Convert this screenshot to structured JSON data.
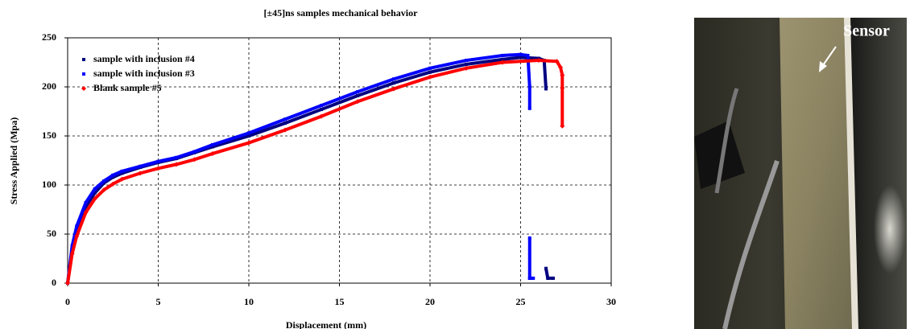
{
  "chart_data": {
    "type": "line",
    "title": "[±45]ns samples mechanical behavior",
    "x_label": "Displacement (mm)",
    "y_label": "Stress Applied (Mpa)",
    "xlim": [
      0,
      30
    ],
    "xticks": [
      0,
      5,
      10,
      15,
      20,
      25,
      30
    ],
    "ylim": [
      0,
      250
    ],
    "yticks": [
      0,
      50,
      100,
      150,
      200,
      250
    ],
    "grid": true,
    "legend": "upper left",
    "series": [
      {
        "name": "sample with inclusion #4",
        "color": "#000080",
        "marker": "square",
        "x": [
          0,
          0.25,
          0.5,
          1,
          1.5,
          2,
          2.5,
          3,
          4,
          5,
          6,
          7,
          8,
          10,
          12,
          14,
          16,
          18,
          20,
          22,
          24,
          25,
          26,
          26.3,
          26.4,
          26.4,
          26.4,
          26.5,
          26.8
        ],
        "values": [
          0,
          35,
          55,
          78,
          92,
          102,
          108,
          112,
          118,
          123,
          127,
          133,
          139,
          150,
          163,
          177,
          191,
          204,
          215,
          223,
          228,
          230,
          229,
          227,
          198,
          null,
          15,
          5,
          5
        ]
      },
      {
        "name": "sample with inclusion #3",
        "color": "#0000ff",
        "marker": "square",
        "x": [
          0,
          0.25,
          0.5,
          1,
          1.5,
          2,
          2.5,
          3,
          4,
          5,
          6,
          7,
          8,
          10,
          12,
          14,
          16,
          18,
          20,
          22,
          24,
          25,
          25.4,
          25.5,
          25.5,
          25.5,
          25.5,
          25.5,
          25.7
        ],
        "values": [
          0,
          38,
          58,
          82,
          96,
          104,
          110,
          114,
          119,
          124,
          128,
          134,
          141,
          153,
          167,
          181,
          195,
          208,
          219,
          227,
          232,
          233,
          232,
          200,
          178,
          null,
          46,
          5,
          5
        ]
      },
      {
        "name": "Blank sample #5",
        "color": "#ff0000",
        "marker": "diamond",
        "x": [
          0,
          0.25,
          0.5,
          1,
          1.5,
          2,
          2.5,
          3,
          4,
          5,
          6,
          7,
          8,
          10,
          12,
          14,
          16,
          18,
          20,
          22,
          24,
          26,
          27,
          27.2,
          27.3,
          27.3,
          27.3
        ],
        "values": [
          0,
          30,
          48,
          72,
          86,
          95,
          101,
          106,
          112,
          117,
          121,
          126,
          132,
          143,
          156,
          170,
          185,
          198,
          210,
          219,
          225,
          227,
          226,
          220,
          212,
          199,
          160
        ]
      }
    ]
  },
  "photo": {
    "label": "Sensor"
  }
}
